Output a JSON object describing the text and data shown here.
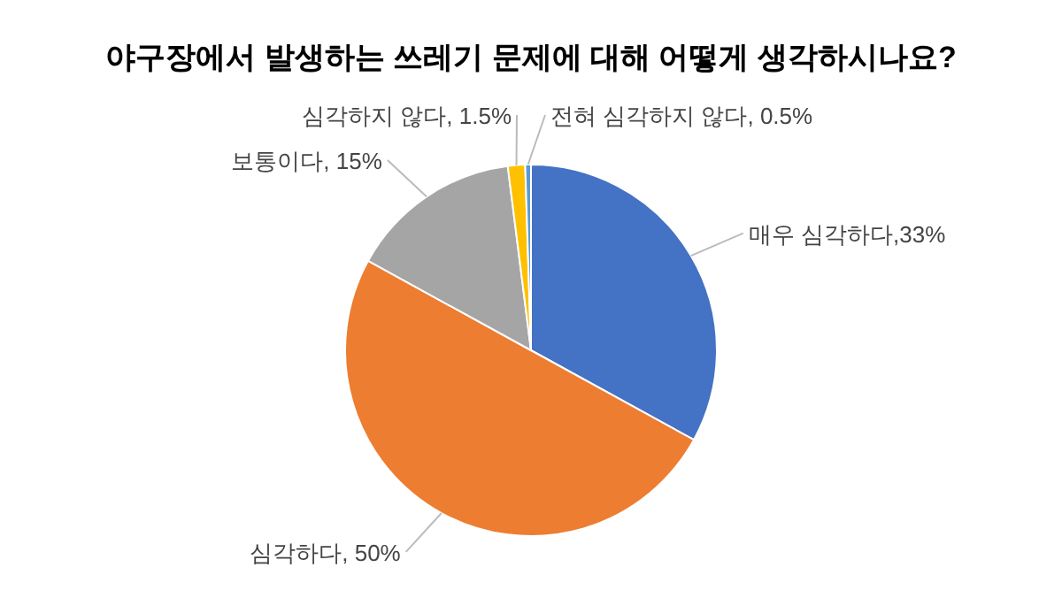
{
  "chart_data": {
    "type": "pie",
    "title": "야구장에서 발생하는 쓰레기 문제에 대해 어떻게 생각하시나요?",
    "categories": [
      "매우 심각하다,33%",
      "심각하다, 50%",
      "보통이다, 15%",
      "심각하지 않다, 1.5%",
      "전혀 심각하지 않다, 0.5%"
    ],
    "values": [
      33,
      50,
      15,
      1.5,
      0.5
    ],
    "colors": [
      "#4472c4",
      "#ed7d31",
      "#a5a5a5",
      "#ffc000",
      "#5b9bd5"
    ]
  }
}
